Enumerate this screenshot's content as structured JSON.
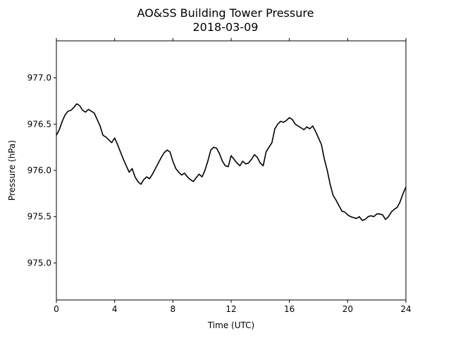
{
  "chart_data": {
    "type": "line",
    "title": "AO&SS Building Tower Pressure",
    "subtitle": "2018-03-09",
    "xlabel": "Time (UTC)",
    "ylabel": "Pressure (hPa)",
    "xlim": [
      0,
      24
    ],
    "ylim": [
      974.6,
      977.4
    ],
    "xticks": [
      0,
      4,
      8,
      12,
      16,
      20,
      24
    ],
    "xtick_labels": [
      "0",
      "4",
      "8",
      "12",
      "16",
      "20",
      "24"
    ],
    "yticks": [
      975.0,
      975.5,
      976.0,
      976.5,
      977.0
    ],
    "ytick_labels": [
      "975.0",
      "975.5",
      "976.0",
      "976.5",
      "977.0"
    ],
    "grid": false,
    "line_color": "#000000",
    "series": [
      {
        "x": [
          0,
          0.2,
          0.4,
          0.6,
          0.8,
          1.0,
          1.2,
          1.4,
          1.6,
          1.8,
          2.0,
          2.2,
          2.4,
          2.6,
          2.8,
          3.0,
          3.2,
          3.4,
          3.6,
          3.8,
          4.0,
          4.2,
          4.4,
          4.6,
          4.8,
          5.0,
          5.2,
          5.4,
          5.6,
          5.8,
          6.0,
          6.2,
          6.4,
          6.6,
          6.8,
          7.0,
          7.2,
          7.4,
          7.6,
          7.8,
          8.0,
          8.2,
          8.4,
          8.6,
          8.8,
          9.0,
          9.2,
          9.4,
          9.6,
          9.8,
          10.0,
          10.2,
          10.4,
          10.6,
          10.8,
          11.0,
          11.2,
          11.4,
          11.6,
          11.8,
          12.0,
          12.2,
          12.4,
          12.6,
          12.8,
          13.0,
          13.2,
          13.4,
          13.6,
          13.8,
          14.0,
          14.2,
          14.4,
          14.6,
          14.8,
          15.0,
          15.2,
          15.4,
          15.6,
          15.8,
          16.0,
          16.2,
          16.4,
          16.6,
          16.8,
          17.0,
          17.2,
          17.4,
          17.6,
          17.8,
          18.0,
          18.2,
          18.4,
          18.6,
          18.8,
          19.0,
          19.2,
          19.4,
          19.6,
          19.8,
          20.0,
          20.2,
          20.4,
          20.6,
          20.8,
          21.0,
          21.2,
          21.4,
          21.6,
          21.8,
          22.0,
          22.2,
          22.4,
          22.6,
          22.8,
          23.0,
          23.2,
          23.4,
          23.6,
          23.8,
          24.0
        ],
        "y": [
          976.38,
          976.44,
          976.53,
          976.6,
          976.64,
          976.65,
          976.68,
          976.72,
          976.7,
          976.65,
          976.63,
          976.66,
          976.64,
          976.62,
          976.55,
          976.48,
          976.38,
          976.36,
          976.33,
          976.3,
          976.35,
          976.28,
          976.2,
          976.12,
          976.05,
          975.98,
          976.02,
          975.93,
          975.88,
          975.85,
          975.9,
          975.93,
          975.91,
          975.96,
          976.02,
          976.08,
          976.14,
          976.19,
          976.22,
          976.2,
          976.1,
          976.02,
          975.98,
          975.95,
          975.97,
          975.93,
          975.9,
          975.88,
          975.92,
          975.96,
          975.93,
          976.0,
          976.1,
          976.22,
          976.25,
          976.24,
          976.18,
          976.1,
          976.05,
          976.04,
          976.16,
          976.12,
          976.08,
          976.05,
          976.1,
          976.07,
          976.08,
          976.12,
          976.17,
          976.14,
          976.08,
          976.05,
          976.2,
          976.25,
          976.3,
          976.45,
          976.5,
          976.53,
          976.52,
          976.54,
          976.57,
          976.55,
          976.5,
          976.48,
          976.46,
          976.44,
          976.47,
          976.45,
          976.48,
          976.42,
          976.35,
          976.28,
          976.12,
          976.0,
          975.85,
          975.73,
          975.68,
          975.62,
          975.56,
          975.55,
          975.52,
          975.5,
          975.49,
          975.48,
          975.5,
          975.46,
          975.47,
          975.5,
          975.51,
          975.5,
          975.53,
          975.53,
          975.52,
          975.47,
          975.5,
          975.55,
          975.58,
          975.6,
          975.66,
          975.75,
          975.82
        ]
      }
    ]
  }
}
